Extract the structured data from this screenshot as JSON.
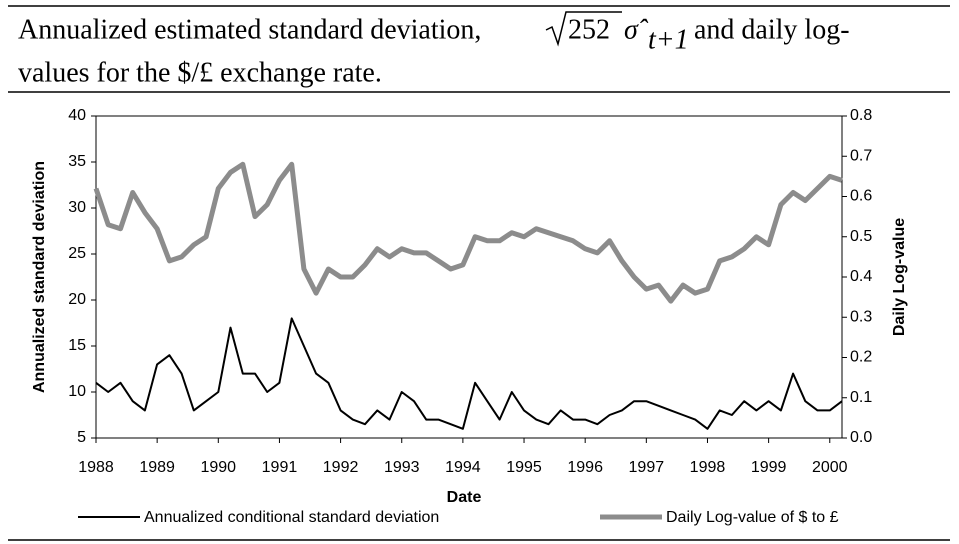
{
  "chart_data": {
    "type": "line",
    "title_start": "Annualized estimated standard deviation,",
    "title_radicand": "252",
    "title_sigma": "σ̂",
    "title_subscript": "t+1",
    "title_end": "and daily log-",
    "title_line2": "values for the $/£ exchange rate.",
    "xlabel": "Date",
    "ylabel": "Annualized standard deviation",
    "y2label": "Daily Log-value",
    "x": [
      1988.0,
      1988.2,
      1988.4,
      1988.6,
      1988.8,
      1989.0,
      1989.2,
      1989.4,
      1989.6,
      1989.8,
      1990.0,
      1990.2,
      1990.4,
      1990.6,
      1990.8,
      1991.0,
      1991.2,
      1991.4,
      1991.6,
      1991.8,
      1992.0,
      1992.2,
      1992.4,
      1992.6,
      1992.8,
      1993.0,
      1993.2,
      1993.4,
      1993.6,
      1993.8,
      1994.0,
      1994.2,
      1994.4,
      1994.6,
      1994.8,
      1995.0,
      1995.2,
      1995.4,
      1995.6,
      1995.8,
      1996.0,
      1996.2,
      1996.4,
      1996.6,
      1996.8,
      1997.0,
      1997.2,
      1997.4,
      1997.6,
      1997.8,
      1998.0,
      1998.2,
      1998.4,
      1998.6,
      1998.8,
      1999.0,
      1999.2,
      1999.4,
      1999.6,
      1999.8,
      2000.0,
      2000.2
    ],
    "series": [
      {
        "name": "Annualized conditional standard deviation",
        "color": "#000000",
        "axis": "y",
        "values": [
          11,
          10,
          11,
          9,
          8,
          13,
          14,
          12,
          8,
          9,
          10,
          17,
          12,
          12,
          10,
          11,
          18,
          15,
          12,
          11,
          8,
          7,
          6.5,
          8,
          7,
          10,
          9,
          7,
          7,
          6.5,
          6,
          11,
          9,
          7,
          10,
          8,
          7,
          6.5,
          8,
          7,
          7,
          6.5,
          7.5,
          8,
          9,
          9,
          8.5,
          8,
          7.5,
          7,
          6,
          8,
          7.5,
          9,
          8,
          9,
          8,
          12,
          9,
          8,
          8,
          9
        ]
      },
      {
        "name": "Daily Log-value of $ to £",
        "color": "#8c8c8c",
        "axis": "y2",
        "values": [
          0.62,
          0.53,
          0.52,
          0.61,
          0.56,
          0.52,
          0.44,
          0.45,
          0.48,
          0.5,
          0.62,
          0.66,
          0.68,
          0.55,
          0.58,
          0.64,
          0.68,
          0.42,
          0.36,
          0.42,
          0.4,
          0.4,
          0.43,
          0.47,
          0.45,
          0.47,
          0.46,
          0.46,
          0.44,
          0.42,
          0.43,
          0.5,
          0.49,
          0.49,
          0.51,
          0.5,
          0.52,
          0.51,
          0.5,
          0.49,
          0.47,
          0.46,
          0.49,
          0.44,
          0.4,
          0.37,
          0.38,
          0.34,
          0.38,
          0.36,
          0.37,
          0.44,
          0.45,
          0.47,
          0.5,
          0.48,
          0.58,
          0.61,
          0.59,
          0.62,
          0.65,
          0.64
        ]
      }
    ],
    "xlim": [
      1988,
      2000.2
    ],
    "xticks": [
      1988,
      1989,
      1990,
      1991,
      1992,
      1993,
      1994,
      1995,
      1996,
      1997,
      1998,
      1999,
      2000
    ],
    "ylim": [
      5,
      40
    ],
    "yticks": [
      5,
      10,
      15,
      20,
      25,
      30,
      35,
      40
    ],
    "y2lim": [
      0,
      0.8
    ],
    "y2ticks": [
      {
        "value": 0,
        "label": "0.0"
      },
      0.1,
      0.2,
      0.3,
      0.4,
      0.5,
      0.6,
      0.7,
      0.8
    ]
  }
}
